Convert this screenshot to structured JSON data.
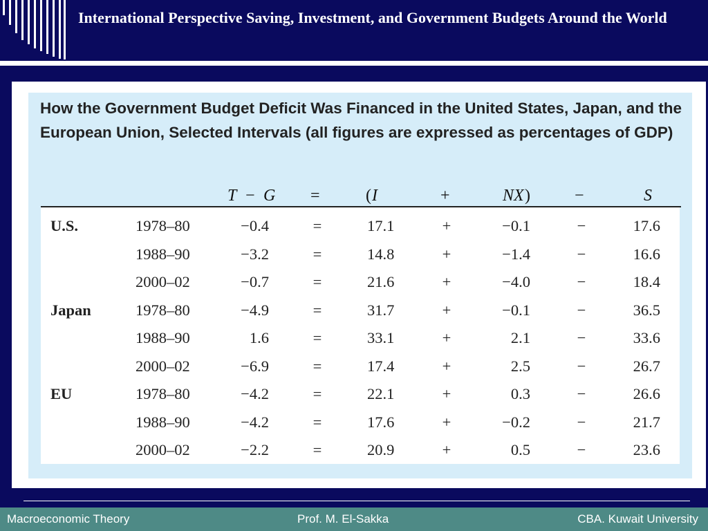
{
  "slide": {
    "title": "International Perspective  Saving, Investment, and Government Budgets Around the World"
  },
  "table": {
    "heading": "How the Government Budget Deficit Was Financed in the United States, Japan, and the European Union, Selected Intervals (all figures are expressed as percentages of GDP)",
    "header": {
      "t": "T",
      "minus1": "−",
      "g": "G",
      "eq": "=",
      "lparen": "(",
      "i": "I",
      "plus": "+",
      "nx": "NX",
      "rparen": ")",
      "minus2": "−",
      "s": "S"
    },
    "rows": [
      {
        "region": "U.S.",
        "period": "1978–80",
        "tg": "−0.4",
        "eq": "=",
        "i": "17.1",
        "plus": "+",
        "nx": "−0.1",
        "minus": "−",
        "s": "17.6"
      },
      {
        "region": "",
        "period": "1988–90",
        "tg": "−3.2",
        "eq": "=",
        "i": "14.8",
        "plus": "+",
        "nx": "−1.4",
        "minus": "−",
        "s": "16.6"
      },
      {
        "region": "",
        "period": "2000–02",
        "tg": "−0.7",
        "eq": "=",
        "i": "21.6",
        "plus": "+",
        "nx": "−4.0",
        "minus": "−",
        "s": "18.4"
      },
      {
        "region": "Japan",
        "period": "1978–80",
        "tg": "−4.9",
        "eq": "=",
        "i": "31.7",
        "plus": "+",
        "nx": "−0.1",
        "minus": "−",
        "s": "36.5"
      },
      {
        "region": "",
        "period": "1988–90",
        "tg": "1.6",
        "eq": "=",
        "i": "33.1",
        "plus": "+",
        "nx": "2.1",
        "minus": "−",
        "s": "33.6"
      },
      {
        "region": "",
        "period": "2000–02",
        "tg": "−6.9",
        "eq": "=",
        "i": "17.4",
        "plus": "+",
        "nx": "2.5",
        "minus": "−",
        "s": "26.7"
      },
      {
        "region": "EU",
        "period": "1978–80",
        "tg": "−4.2",
        "eq": "=",
        "i": "22.1",
        "plus": "+",
        "nx": "0.3",
        "minus": "−",
        "s": "26.6"
      },
      {
        "region": "",
        "period": "1988–90",
        "tg": "−4.2",
        "eq": "=",
        "i": "17.6",
        "plus": "+",
        "nx": "−0.2",
        "minus": "−",
        "s": "21.7"
      },
      {
        "region": "",
        "period": "2000–02",
        "tg": "−2.2",
        "eq": "=",
        "i": "20.9",
        "plus": "+",
        "nx": "0.5",
        "minus": "−",
        "s": "23.6"
      }
    ]
  },
  "footer": {
    "left": "Macroeconomic Theory",
    "center": "Prof. M. El-Sakka",
    "right": "CBA. Kuwait University"
  },
  "colors": {
    "background": "#0a0a5e",
    "table_fill": "#d6edf9",
    "footer_bar": "#4e8a86"
  }
}
